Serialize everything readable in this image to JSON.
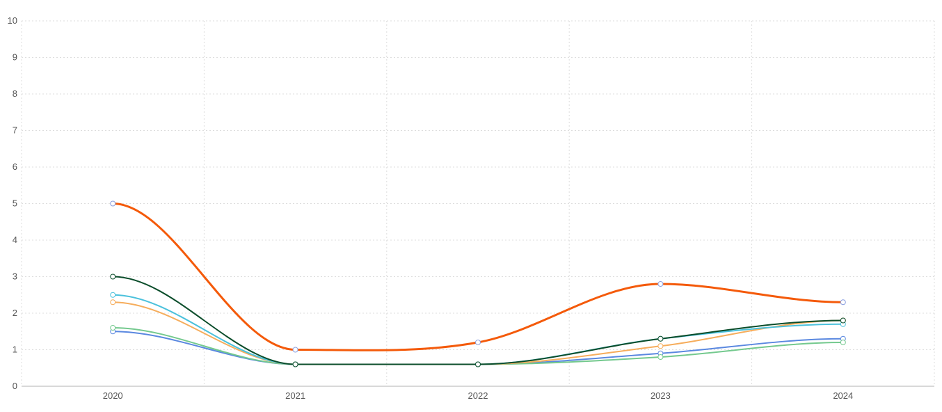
{
  "chart_data": {
    "type": "line",
    "title": "",
    "xlabel": "",
    "ylabel": "",
    "x": [
      "2020",
      "2021",
      "2022",
      "2023",
      "2024"
    ],
    "yticks": [
      "0",
      "1",
      "2",
      "3",
      "4",
      "5",
      "6",
      "7",
      "8",
      "9",
      "10"
    ],
    "ylim": [
      0,
      10
    ],
    "grid": true,
    "legend": "none",
    "curve": "smooth",
    "series": [
      {
        "color": "#5a88e0",
        "width": 2,
        "values": [
          1.5,
          0.6,
          0.6,
          0.9,
          1.3
        ]
      },
      {
        "color": "#74c98e",
        "width": 2,
        "values": [
          1.6,
          0.6,
          0.6,
          0.8,
          1.2
        ]
      },
      {
        "color": "#f6ad5c",
        "width": 2,
        "values": [
          2.3,
          0.6,
          0.6,
          1.1,
          1.8
        ]
      },
      {
        "color": "#4bc1dc",
        "width": 2,
        "values": [
          2.5,
          0.6,
          0.6,
          1.3,
          1.7
        ]
      },
      {
        "color": "#0b4d2b",
        "width": 2,
        "values": [
          3.0,
          0.6,
          0.6,
          1.3,
          1.8
        ]
      },
      {
        "color": "#f45a0a",
        "width": 3,
        "values": [
          5.0,
          1.0,
          1.2,
          2.8,
          2.3
        ]
      }
    ],
    "marker_stroke": "#8a9fe0"
  }
}
